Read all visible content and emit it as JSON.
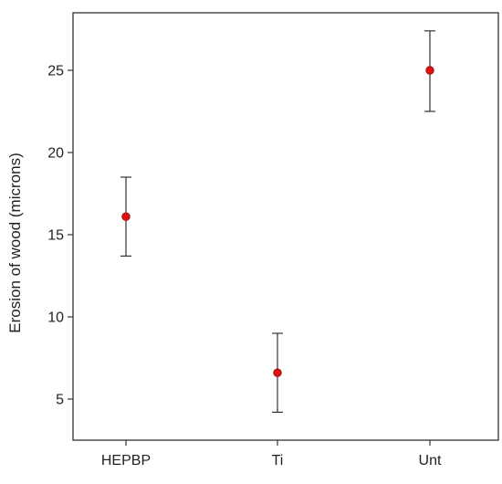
{
  "chart_data": {
    "type": "scatter",
    "title": "",
    "xlabel": "",
    "ylabel": "Erosion of wood (microns)",
    "categories": [
      "HEPBP",
      "Ti",
      "Unt"
    ],
    "series": [
      {
        "values": [
          16.1,
          6.6,
          25.0
        ],
        "error_low": [
          13.7,
          4.2,
          22.5
        ],
        "error_high": [
          18.5,
          9.0,
          27.4
        ]
      }
    ],
    "ylim": [
      2.5,
      28.5
    ],
    "yticks": [
      5,
      10,
      15,
      20,
      25
    ],
    "grid": false,
    "colors": {
      "point": "#dd1111",
      "point_edge": "#9a0c0c",
      "error_bar": "#333333",
      "axis": "#333333"
    }
  }
}
